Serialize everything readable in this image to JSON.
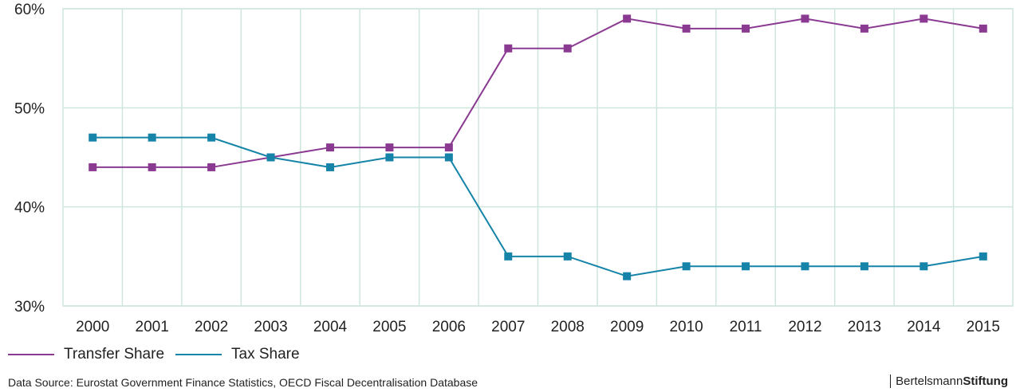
{
  "chart_data": {
    "type": "line",
    "categories": [
      "2000",
      "2001",
      "2002",
      "2003",
      "2004",
      "2005",
      "2006",
      "2007",
      "2008",
      "2009",
      "2010",
      "2011",
      "2012",
      "2013",
      "2014",
      "2015"
    ],
    "series": [
      {
        "name": "Transfer Share",
        "color": "#8b3a92",
        "values": [
          44,
          44,
          44,
          45,
          46,
          46,
          46,
          56,
          56,
          59,
          58,
          58,
          59,
          58,
          59,
          58
        ]
      },
      {
        "name": "Tax Share",
        "color": "#1683a8",
        "values": [
          47,
          47,
          47,
          45,
          44,
          45,
          45,
          35,
          35,
          33,
          34,
          34,
          34,
          34,
          34,
          35
        ]
      }
    ],
    "ylim": [
      30,
      60
    ],
    "yticks": [
      30,
      40,
      50,
      60
    ],
    "ytick_labels": [
      "30%",
      "40%",
      "50%",
      "60%"
    ],
    "grid": true,
    "legend_position": "bottom-left"
  },
  "footer": {
    "source": "Data Source: Eurostat Government Finance Statistics, OECD Fiscal Decentralisation Database",
    "brand_light": "Bertelsmann",
    "brand_strong": "Stiftung"
  },
  "colors": {
    "grid": "#cfe6dc",
    "transfer": "#8b3a92",
    "tax": "#1683a8"
  }
}
